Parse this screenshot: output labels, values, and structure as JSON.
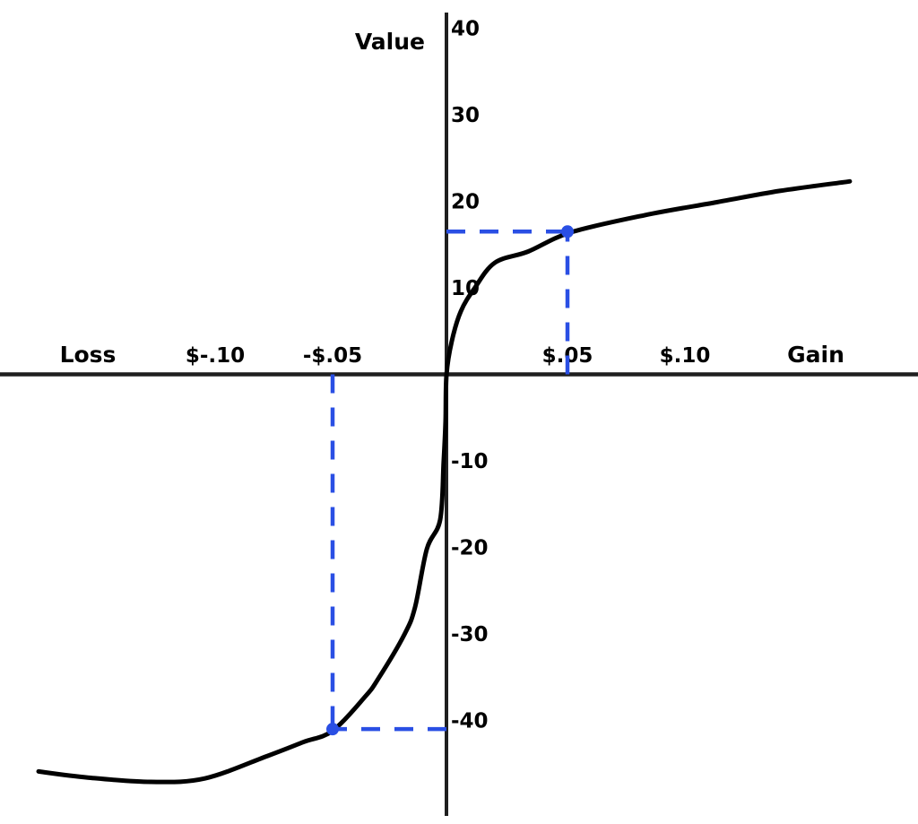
{
  "figure": {
    "y_axis_title": "Value",
    "x_axis_left_title": "Loss",
    "x_axis_right_title": "Gain"
  },
  "colors": {
    "curve": "#000000",
    "axis": "#1f1f1f",
    "guide": "#2a4fe4",
    "text": "#000000",
    "background": "#ffffff"
  },
  "chart_data": {
    "type": "line",
    "title": "",
    "description": "Prospect theory value function: S-shaped curve through the origin, concave for gains, convex and steeper for losses",
    "x_axis": {
      "left_label": "Loss",
      "right_label": "Gain",
      "ticks": [
        {
          "label": "$-.10",
          "value": -0.1
        },
        {
          "label": "-$.05",
          "value": -0.05
        },
        {
          "label": "$.05",
          "value": 0.05
        },
        {
          "label": "$.10",
          "value": 0.1
        }
      ],
      "range": [
        -0.195,
        0.2
      ]
    },
    "y_axis": {
      "label": "Value",
      "ticks": [
        {
          "label": "40",
          "value": 40
        },
        {
          "label": "30",
          "value": 30
        },
        {
          "label": "20",
          "value": 20
        },
        {
          "label": "10",
          "value": 10
        },
        {
          "label": "-10",
          "value": -10
        },
        {
          "label": "-20",
          "value": -20
        },
        {
          "label": "-30",
          "value": -30
        },
        {
          "label": "-40",
          "value": -40
        }
      ],
      "range": [
        -52,
        42
      ]
    },
    "series": [
      {
        "name": "value-function",
        "color": "#000000",
        "points": [
          [
            -0.1752,
            -45.9
          ],
          [
            -0.1542,
            -46.6
          ],
          [
            -0.1274,
            -47.1
          ],
          [
            -0.1044,
            -46.7
          ],
          [
            -0.0777,
            -44.1
          ],
          [
            -0.0624,
            -42.5
          ],
          [
            -0.05,
            -41.2
          ],
          [
            -0.0363,
            -37.3
          ],
          [
            -0.0306,
            -35.2
          ],
          [
            -0.0195,
            -30.1
          ],
          [
            -0.0149,
            -26.9
          ],
          [
            -0.0099,
            -20.2
          ],
          [
            -0.0042,
            -16.8
          ],
          [
            -0.0027,
            -10.1
          ],
          [
            -0.0019,
            -5.4
          ],
          [
            -0.0015,
            0.0
          ],
          [
            0.0008,
            3.9
          ],
          [
            0.0046,
            7.3
          ],
          [
            0.0103,
            9.9
          ],
          [
            0.0191,
            12.9
          ],
          [
            0.0333,
            14.2
          ],
          [
            0.0513,
            16.4
          ],
          [
            0.083,
            18.4
          ],
          [
            0.1136,
            19.9
          ],
          [
            0.1404,
            21.2
          ],
          [
            0.1702,
            22.3
          ]
        ]
      }
    ],
    "highlighted_points": [
      {
        "x": 0.05,
        "value": 16.5,
        "color": "#2a4fe4"
      },
      {
        "x": -0.05,
        "value": -41,
        "color": "#2a4fe4"
      }
    ],
    "guide_style": {
      "color": "#2a4fe4",
      "style": "dashed"
    },
    "grid": false,
    "legend": "none"
  }
}
